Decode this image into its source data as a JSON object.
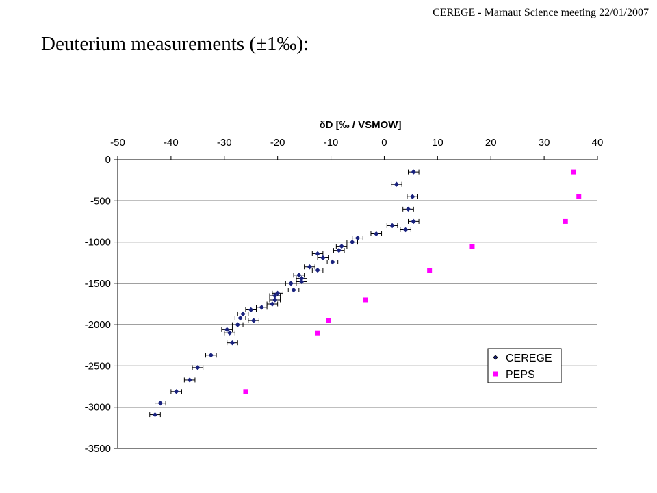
{
  "header": {
    "note": "CEREGE - Marnaut Science meeting 22/01/2007",
    "title": "Deuterium measurements (±1‰):"
  },
  "chart_data": {
    "type": "scatter",
    "title": "δD  [‰ / VSMOW]",
    "xlabel": "δD  [‰ / VSMOW]",
    "ylabel": "",
    "x_axis_position": "top",
    "xlim": [
      -50,
      40
    ],
    "ylim": [
      -3500,
      0
    ],
    "xticks": [
      -50,
      -40,
      -30,
      -20,
      -10,
      0,
      10,
      20,
      30,
      40
    ],
    "yticks": [
      0,
      -500,
      -1000,
      -1500,
      -2000,
      -2500,
      -3000,
      -3500
    ],
    "grid": "horizontal",
    "legend_position": "lower-right",
    "error_bar_x": 1,
    "series": [
      {
        "name": "CEREGE",
        "color": "#1a237e",
        "marker": "diamond",
        "points": [
          [
            5.5,
            -150
          ],
          [
            2.3,
            -300
          ],
          [
            5.3,
            -450
          ],
          [
            4.5,
            -600
          ],
          [
            5.5,
            -750
          ],
          [
            1.5,
            -800
          ],
          [
            4.0,
            -850
          ],
          [
            -1.5,
            -900
          ],
          [
            -5.0,
            -950
          ],
          [
            -6.0,
            -1000
          ],
          [
            -8.0,
            -1050
          ],
          [
            -8.5,
            -1100
          ],
          [
            -12.5,
            -1140
          ],
          [
            -11.5,
            -1190
          ],
          [
            -9.7,
            -1240
          ],
          [
            -14.0,
            -1300
          ],
          [
            -12.5,
            -1340
          ],
          [
            -16.0,
            -1400
          ],
          [
            -15.5,
            -1440
          ],
          [
            -15.5,
            -1480
          ],
          [
            -17.5,
            -1500
          ],
          [
            -17.0,
            -1580
          ],
          [
            -20.0,
            -1620
          ],
          [
            -20.5,
            -1650
          ],
          [
            -20.5,
            -1700
          ],
          [
            -21.0,
            -1750
          ],
          [
            -23.0,
            -1790
          ],
          [
            -25.0,
            -1820
          ],
          [
            -26.5,
            -1870
          ],
          [
            -27.0,
            -1920
          ],
          [
            -24.5,
            -1950
          ],
          [
            -27.5,
            -2000
          ],
          [
            -29.5,
            -2060
          ],
          [
            -29.0,
            -2100
          ],
          [
            -28.5,
            -2220
          ],
          [
            -32.5,
            -2370
          ],
          [
            -35.0,
            -2520
          ],
          [
            -36.5,
            -2670
          ],
          [
            -39.0,
            -2810
          ],
          [
            -42.0,
            -2950
          ],
          [
            -43.0,
            -3090
          ]
        ]
      },
      {
        "name": "PEPS",
        "color": "#ff00ff",
        "marker": "square",
        "points": [
          [
            35.5,
            -150
          ],
          [
            36.5,
            -450
          ],
          [
            34.0,
            -750
          ],
          [
            16.5,
            -1050
          ],
          [
            8.5,
            -1340
          ],
          [
            -3.5,
            -1700
          ],
          [
            -10.5,
            -1950
          ],
          [
            -12.5,
            -2100
          ],
          [
            -26.0,
            -2810
          ]
        ]
      }
    ]
  }
}
